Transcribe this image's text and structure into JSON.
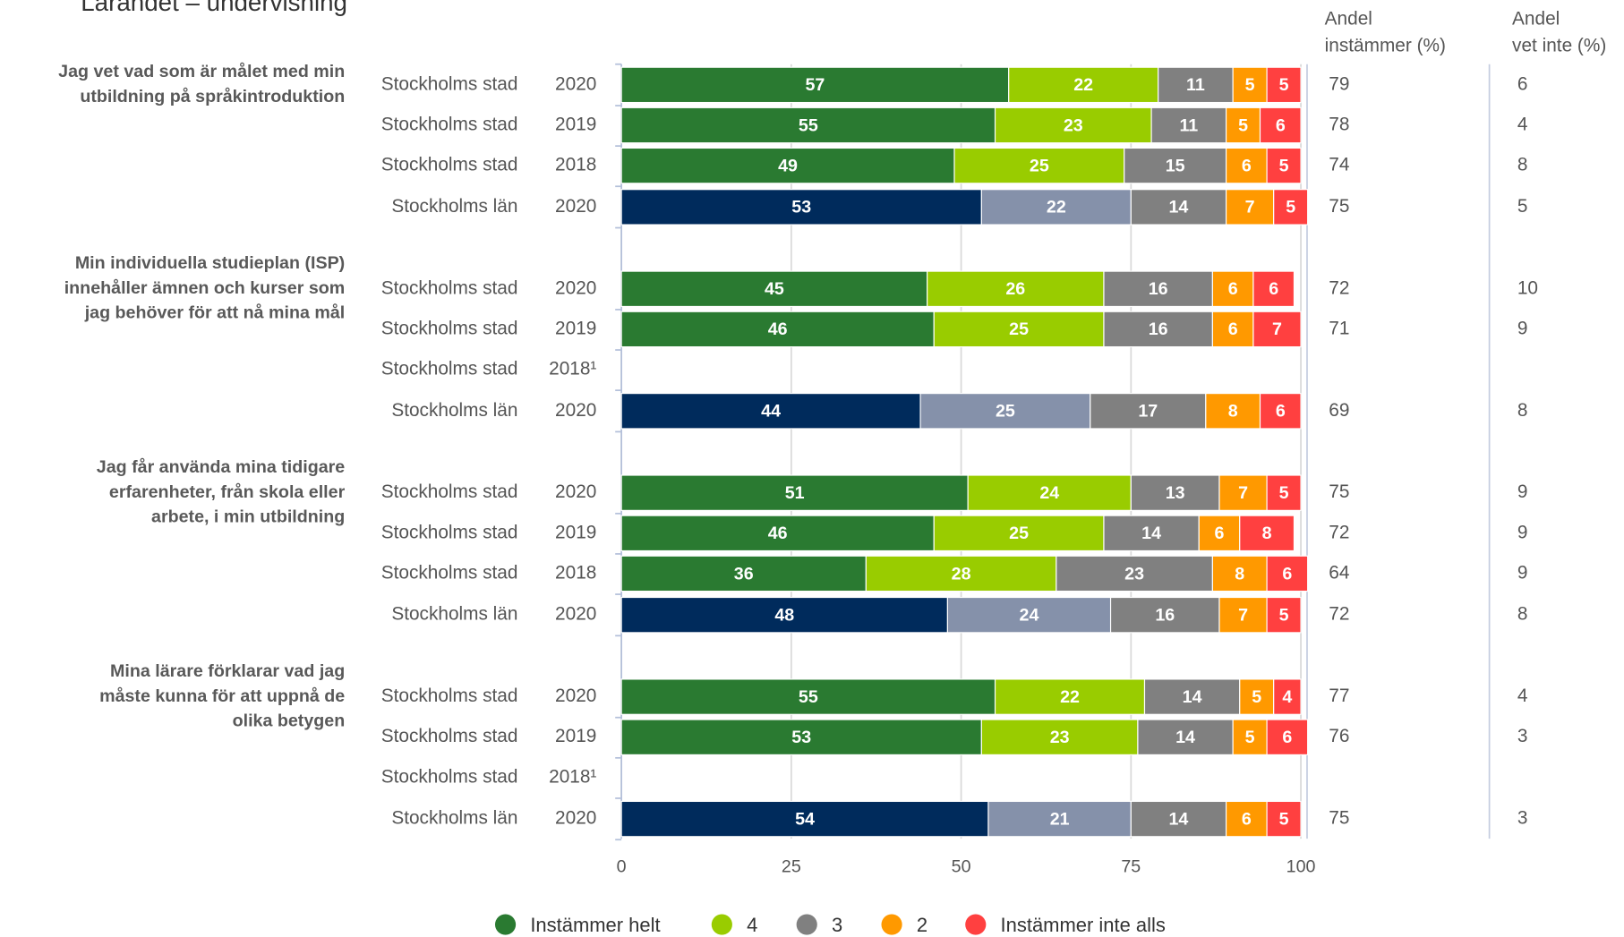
{
  "chart_data": {
    "type": "bar",
    "orientation": "horizontal",
    "stacked": true,
    "title": "Lärandet – undervisning",
    "column_headers": [
      [
        "Andel",
        "instämmer (%)"
      ],
      [
        "Andel",
        "vet inte (%)"
      ]
    ],
    "series": [
      {
        "name": "Instämmer helt",
        "color": "#2a7a31",
        "comparison_color": "#002b5c"
      },
      {
        "name": "4",
        "color": "#99cc00",
        "comparison_color": "#8591aa"
      },
      {
        "name": "3",
        "color": "#808080",
        "comparison_color": "#808080"
      },
      {
        "name": "2",
        "color": "#ff9900",
        "comparison_color": "#ff9900"
      },
      {
        "name": "Instämmer inte alls",
        "color": "#ff4040",
        "comparison_color": "#ff4040"
      }
    ],
    "groups": [
      {
        "label": [
          "Jag vet vad som är målet med min",
          "utbildning på språkintroduktion"
        ],
        "rows": [
          {
            "entity": "Stockholms stad",
            "year": "2020",
            "values": [
              57,
              22,
              11,
              5,
              5
            ],
            "share_agree": 79,
            "share_dont_know": 6
          },
          {
            "entity": "Stockholms stad",
            "year": "2019",
            "values": [
              55,
              23,
              11,
              5,
              6
            ],
            "share_agree": 78,
            "share_dont_know": 4
          },
          {
            "entity": "Stockholms stad",
            "year": "2018",
            "values": [
              49,
              25,
              15,
              6,
              5
            ],
            "share_agree": 74,
            "share_dont_know": 8
          },
          {
            "entity": "Stockholms län",
            "year": "2020",
            "values": [
              53,
              22,
              14,
              7,
              5
            ],
            "share_agree": 75,
            "share_dont_know": 5,
            "comparison": true
          }
        ]
      },
      {
        "label": [
          "Min individuella studieplan (ISP)",
          "innehåller ämnen och kurser som",
          "jag behöver för att nå mina mål"
        ],
        "rows": [
          {
            "entity": "Stockholms stad",
            "year": "2020",
            "values": [
              45,
              26,
              16,
              6,
              6
            ],
            "share_agree": 72,
            "share_dont_know": 10
          },
          {
            "entity": "Stockholms stad",
            "year": "2019",
            "values": [
              46,
              25,
              16,
              6,
              7
            ],
            "share_agree": 71,
            "share_dont_know": 9
          },
          {
            "entity": "Stockholms stad",
            "year": "2018¹",
            "values": [
              null,
              null,
              null,
              null,
              null
            ],
            "share_agree": null,
            "share_dont_know": null
          },
          {
            "entity": "Stockholms län",
            "year": "2020",
            "values": [
              44,
              25,
              17,
              8,
              6
            ],
            "share_agree": 69,
            "share_dont_know": 8,
            "comparison": true
          }
        ]
      },
      {
        "label": [
          "Jag får använda mina tidigare",
          "erfarenheter, från skola eller",
          "arbete, i min utbildning"
        ],
        "rows": [
          {
            "entity": "Stockholms stad",
            "year": "2020",
            "values": [
              51,
              24,
              13,
              7,
              5
            ],
            "share_agree": 75,
            "share_dont_know": 9
          },
          {
            "entity": "Stockholms stad",
            "year": "2019",
            "values": [
              46,
              25,
              14,
              6,
              8
            ],
            "share_agree": 72,
            "share_dont_know": 9
          },
          {
            "entity": "Stockholms stad",
            "year": "2018",
            "values": [
              36,
              28,
              23,
              8,
              6
            ],
            "share_agree": 64,
            "share_dont_know": 9
          },
          {
            "entity": "Stockholms län",
            "year": "2020",
            "values": [
              48,
              24,
              16,
              7,
              5
            ],
            "share_agree": 72,
            "share_dont_know": 8,
            "comparison": true
          }
        ]
      },
      {
        "label": [
          "Mina lärare förklarar vad jag",
          "måste kunna för att uppnå de",
          "olika betygen"
        ],
        "rows": [
          {
            "entity": "Stockholms stad",
            "year": "2020",
            "values": [
              55,
              22,
              14,
              5,
              4
            ],
            "share_agree": 77,
            "share_dont_know": 4
          },
          {
            "entity": "Stockholms stad",
            "year": "2019",
            "values": [
              53,
              23,
              14,
              5,
              6
            ],
            "share_agree": 76,
            "share_dont_know": 3
          },
          {
            "entity": "Stockholms stad",
            "year": "2018¹",
            "values": [
              null,
              null,
              null,
              null,
              null
            ],
            "share_agree": null,
            "share_dont_know": null
          },
          {
            "entity": "Stockholms län",
            "year": "2020",
            "values": [
              54,
              21,
              14,
              6,
              5
            ],
            "share_agree": 75,
            "share_dont_know": 3,
            "comparison": true
          }
        ]
      }
    ],
    "xlim": [
      0,
      100
    ],
    "xticks": [
      0,
      25,
      50,
      75,
      100
    ],
    "grid": true,
    "legend": "bottom"
  }
}
